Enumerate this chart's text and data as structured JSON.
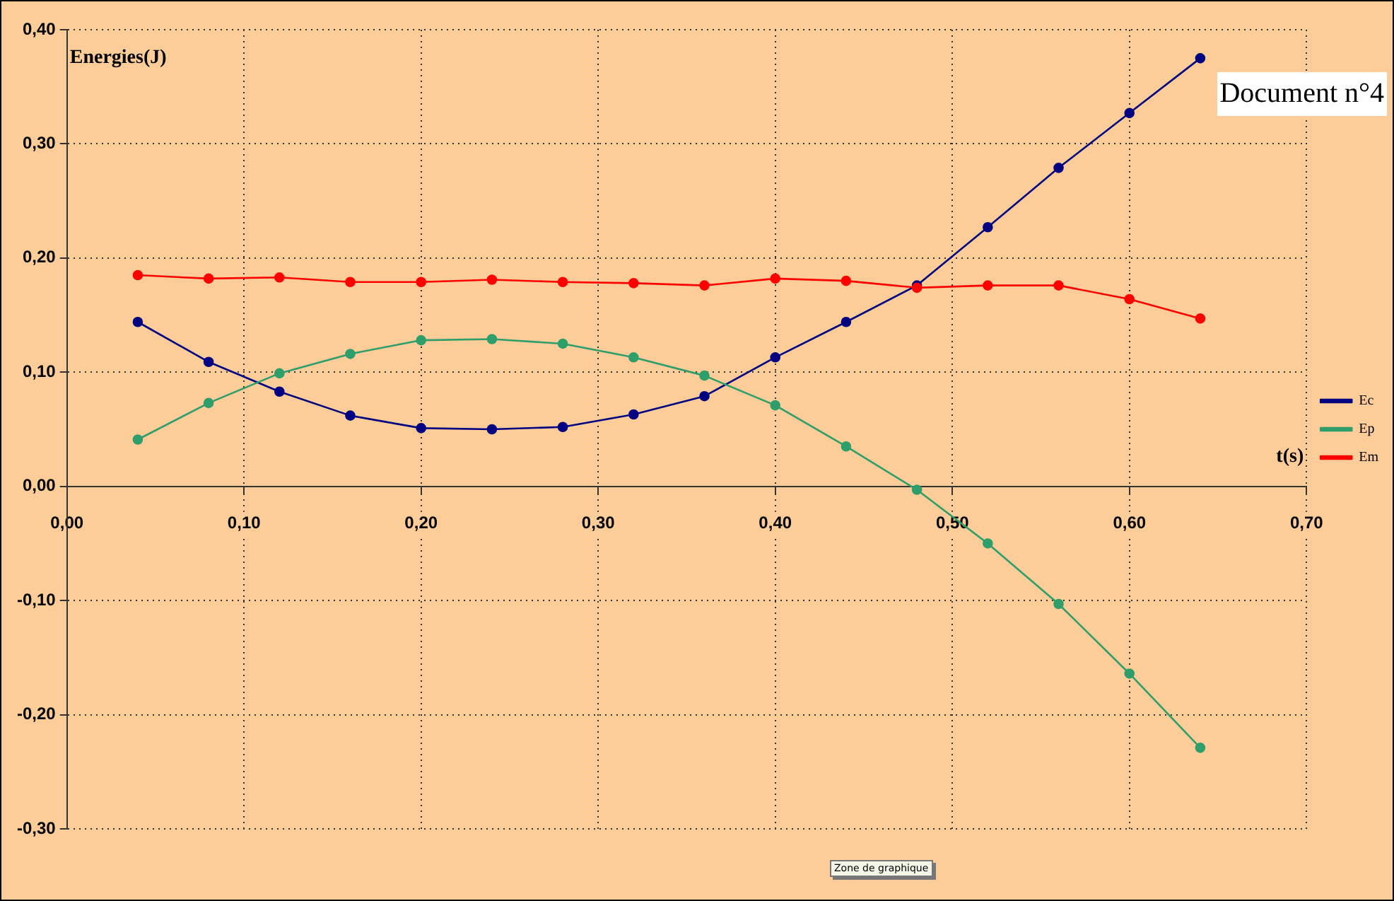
{
  "chart_data": {
    "type": "line",
    "xlabel": "t(s)",
    "ylabel": "Energies(J)",
    "x": [
      0.04,
      0.08,
      0.12,
      0.16,
      0.2,
      0.24,
      0.28,
      0.32,
      0.36,
      0.4,
      0.44,
      0.48,
      0.52,
      0.56,
      0.6,
      0.64
    ],
    "series": [
      {
        "name": "Ec",
        "color": "#000080",
        "values": [
          0.144,
          0.109,
          0.083,
          0.062,
          0.051,
          0.05,
          0.052,
          0.063,
          0.079,
          0.113,
          0.144,
          0.176,
          0.227,
          0.279,
          0.327,
          0.375
        ]
      },
      {
        "name": "Ep",
        "color": "#2e9e6a",
        "values": [
          0.041,
          0.073,
          0.099,
          0.116,
          0.128,
          0.129,
          0.125,
          0.113,
          0.097,
          0.071,
          0.035,
          -0.003,
          -0.05,
          -0.103,
          -0.164,
          -0.229
        ]
      },
      {
        "name": "Em",
        "color": "#ff0000",
        "values": [
          0.185,
          0.182,
          0.183,
          0.179,
          0.179,
          0.181,
          0.179,
          0.178,
          0.176,
          0.182,
          0.18,
          0.174,
          0.176,
          0.176,
          0.164,
          0.147
        ]
      }
    ],
    "xlim": [
      0,
      0.7
    ],
    "xticks": [
      {
        "value": 0,
        "label": "0,00"
      },
      {
        "value": 0.1,
        "label": "0,10"
      },
      {
        "value": 0.2,
        "label": "0,20"
      },
      {
        "value": 0.3,
        "label": "0,30"
      },
      {
        "value": 0.4,
        "label": "0,40"
      },
      {
        "value": 0.5,
        "label": "0,50"
      },
      {
        "value": 0.6,
        "label": "0,60"
      },
      {
        "value": 0.7,
        "label": "0,70"
      }
    ],
    "ylim": [
      -0.3,
      0.4
    ],
    "yticks": [
      {
        "value": -0.3,
        "label": "-0,30"
      },
      {
        "value": -0.2,
        "label": "-0,20"
      },
      {
        "value": -0.1,
        "label": "-0,10"
      },
      {
        "value": 0,
        "label": "0,00"
      },
      {
        "value": 0.1,
        "label": "0,10"
      },
      {
        "value": 0.2,
        "label": "0,20"
      },
      {
        "value": 0.3,
        "label": "0,30"
      },
      {
        "value": 0.4,
        "label": "0,40"
      }
    ],
    "grid": true,
    "legend": "right",
    "marker": "circle",
    "line_style": "solid",
    "annotations": [
      "Document n°4",
      "Zone de graphique"
    ]
  }
}
